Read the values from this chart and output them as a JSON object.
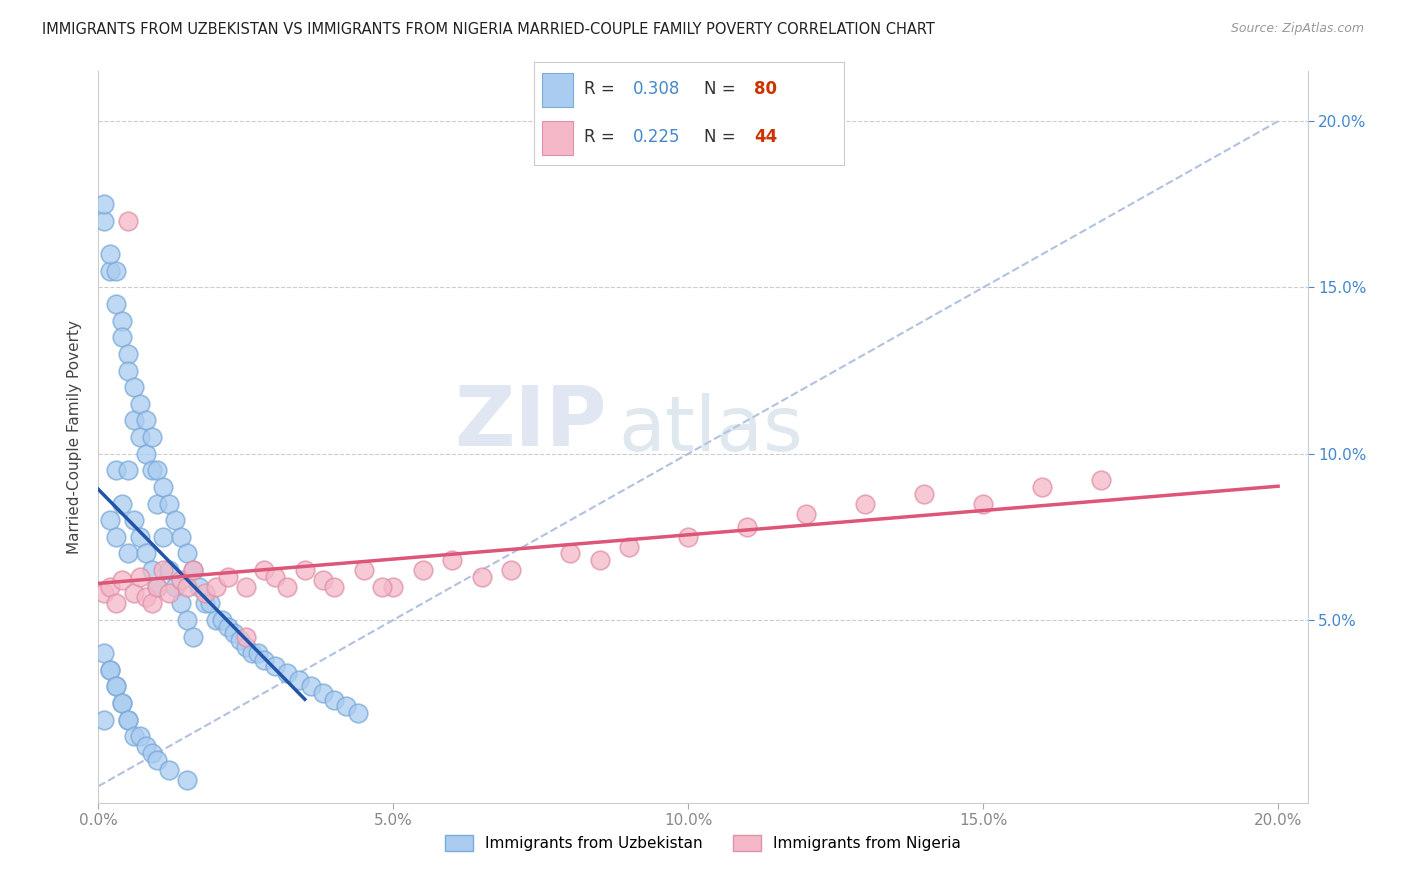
{
  "title": "IMMIGRANTS FROM UZBEKISTAN VS IMMIGRANTS FROM NIGERIA MARRIED-COUPLE FAMILY POVERTY CORRELATION CHART",
  "source": "Source: ZipAtlas.com",
  "ylabel": "Married-Couple Family Poverty",
  "xlim": [
    0.0,
    0.205
  ],
  "ylim": [
    -0.005,
    0.215
  ],
  "xticks": [
    0.0,
    0.05,
    0.1,
    0.15,
    0.2
  ],
  "yticks": [
    0.0,
    0.05,
    0.1,
    0.15,
    0.2
  ],
  "xticklabels": [
    "0.0%",
    "5.0%",
    "10.0%",
    "15.0%",
    "20.0%"
  ],
  "right_yticklabels": [
    "5.0%",
    "10.0%",
    "15.0%",
    "20.0%"
  ],
  "uzbekistan_color": "#aaccf0",
  "uzbekistan_edge": "#7aaad8",
  "nigeria_color": "#f4b8c8",
  "nigeria_edge": "#e090a8",
  "uzbekistan_line_color": "#2255aa",
  "nigeria_line_color": "#dd5577",
  "diagonal_color": "#aabbdd",
  "r_uzbekistan": 0.308,
  "n_uzbekistan": 80,
  "r_nigeria": 0.225,
  "n_nigeria": 44,
  "legend_r_color": "#4488cc",
  "legend_n_color": "#cc3300",
  "legend_label1": "Immigrants from Uzbekistan",
  "legend_label2": "Immigrants from Nigeria",
  "grid_color": "#cccccc",
  "tick_color": "#888888",
  "right_tick_color": "#4488cc",
  "bottom_tick_color": "#888888"
}
